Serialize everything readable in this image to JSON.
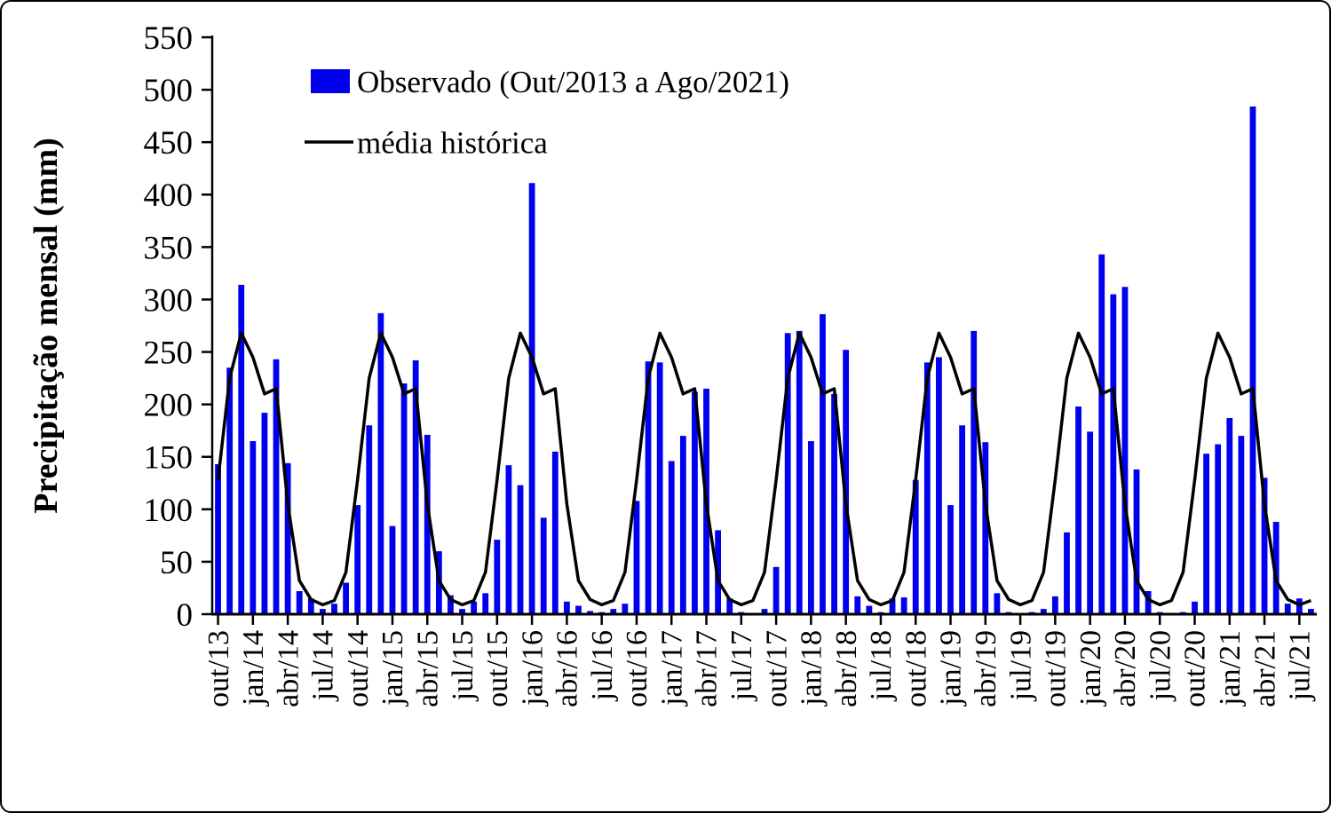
{
  "frame": {
    "background": "#ffffff",
    "border_color": "#000000"
  },
  "chart_data": {
    "type": "bar",
    "title": "",
    "xlabel": "",
    "ylabel": "Precipitação mensal (mm)",
    "ylim": [
      0,
      550
    ],
    "ytick_step": 50,
    "xtick_step": 3,
    "grid": false,
    "legend_position": "top-left-inside",
    "colors": {
      "bar": "#0000ee",
      "line": "#000000",
      "axis": "#000000"
    },
    "categories": [
      "out/13",
      "nov/13",
      "dez/13",
      "jan/14",
      "fev/14",
      "mar/14",
      "abr/14",
      "mai/14",
      "jun/14",
      "jul/14",
      "ago/14",
      "set/14",
      "out/14",
      "nov/14",
      "dez/14",
      "jan/15",
      "fev/15",
      "mar/15",
      "abr/15",
      "mai/15",
      "jun/15",
      "jul/15",
      "ago/15",
      "set/15",
      "out/15",
      "nov/15",
      "dez/15",
      "jan/16",
      "fev/16",
      "mar/16",
      "abr/16",
      "mai/16",
      "jun/16",
      "jul/16",
      "ago/16",
      "set/16",
      "out/16",
      "nov/16",
      "dez/16",
      "jan/17",
      "fev/17",
      "mar/17",
      "abr/17",
      "mai/17",
      "jun/17",
      "jul/17",
      "ago/17",
      "set/17",
      "out/17",
      "nov/17",
      "dez/17",
      "jan/18",
      "fev/18",
      "mar/18",
      "abr/18",
      "mai/18",
      "jun/18",
      "jul/18",
      "ago/18",
      "set/18",
      "out/18",
      "nov/18",
      "dez/18",
      "jan/19",
      "fev/19",
      "mar/19",
      "abr/19",
      "mai/19",
      "jun/19",
      "jul/19",
      "ago/19",
      "set/19",
      "out/19",
      "nov/19",
      "dez/19",
      "jan/20",
      "fev/20",
      "mar/20",
      "abr/20",
      "mai/20",
      "jun/20",
      "jul/20",
      "ago/20",
      "set/20",
      "out/20",
      "nov/20",
      "dez/20",
      "jan/21",
      "fev/21",
      "mar/21",
      "abr/21",
      "mai/21",
      "jun/21",
      "jul/21",
      "ago/21"
    ],
    "series": [
      {
        "name": "Observado (Out/2013 a Ago/2021)",
        "type": "bar",
        "color": "#0000ee",
        "values": [
          143,
          235,
          314,
          165,
          192,
          243,
          144,
          22,
          15,
          5,
          10,
          30,
          104,
          180,
          287,
          84,
          220,
          242,
          171,
          60,
          18,
          5,
          12,
          20,
          71,
          142,
          123,
          411,
          92,
          155,
          12,
          8,
          3,
          2,
          5,
          10,
          108,
          241,
          240,
          146,
          170,
          212,
          215,
          80,
          15,
          2,
          1,
          5,
          45,
          268,
          270,
          165,
          286,
          210,
          252,
          17,
          8,
          2,
          15,
          16,
          128,
          240,
          245,
          104,
          180,
          270,
          164,
          20,
          2,
          1,
          2,
          5,
          17,
          78,
          198,
          174,
          343,
          305,
          312,
          138,
          22,
          2,
          1,
          2,
          12,
          153,
          162,
          187,
          170,
          484,
          130,
          88,
          10,
          15,
          5
        ]
      },
      {
        "name": "média histórica",
        "type": "line",
        "color": "#000000",
        "monthly_pattern": {
          "jan": 245,
          "fev": 210,
          "mar": 215,
          "abr": 105,
          "mai": 32,
          "jun": 14,
          "jul": 9,
          "ago": 13,
          "set": 40,
          "out": 128,
          "nov": 225,
          "dez": 268
        }
      }
    ]
  }
}
